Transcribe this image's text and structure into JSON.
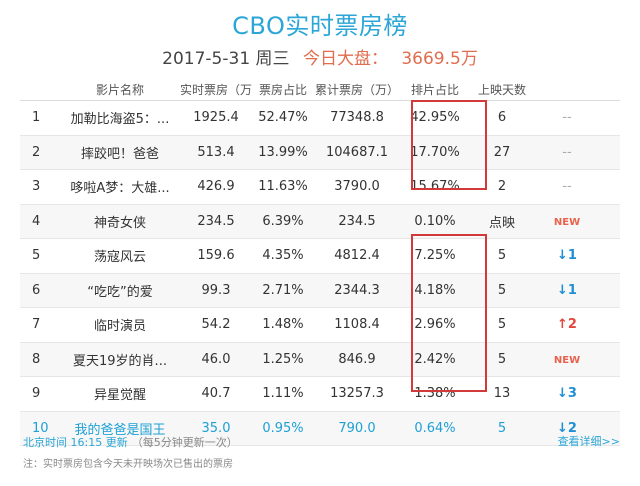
{
  "header": {
    "title": "CBO实时票房榜",
    "date": "2017-5-31 周三",
    "gross_label": "今日大盘：",
    "gross_value": "3669.5万"
  },
  "columns": [
    "影片名称",
    "实时票房（万）",
    "票房占比",
    "累计票房（万）",
    "排片占比",
    "上映天数"
  ],
  "rows": [
    {
      "rank": "1",
      "name": "加勒比海盗5：...",
      "realtime": "1925.4",
      "ratio": "52.47%",
      "total": "77348.8",
      "schedule": "42.95%",
      "days": "6",
      "trend": "--",
      "trend_type": "none"
    },
    {
      "rank": "2",
      "name": "摔跤吧！爸爸",
      "realtime": "513.4",
      "ratio": "13.99%",
      "total": "104687.1",
      "schedule": "17.70%",
      "days": "27",
      "trend": "--",
      "trend_type": "none"
    },
    {
      "rank": "3",
      "name": "哆啦A梦：大雄...",
      "realtime": "426.9",
      "ratio": "11.63%",
      "total": "3790.0",
      "schedule": "15.67%",
      "days": "2",
      "trend": "--",
      "trend_type": "none"
    },
    {
      "rank": "4",
      "name": "神奇女侠",
      "realtime": "234.5",
      "ratio": "6.39%",
      "total": "234.5",
      "schedule": "0.10%",
      "days": "点映",
      "trend": "NEW",
      "trend_type": "new"
    },
    {
      "rank": "5",
      "name": "荡寇风云",
      "realtime": "159.6",
      "ratio": "4.35%",
      "total": "4812.4",
      "schedule": "7.25%",
      "days": "5",
      "trend": "↓1",
      "trend_type": "down"
    },
    {
      "rank": "6",
      "name": "“吃吃”的爱",
      "realtime": "99.3",
      "ratio": "2.71%",
      "total": "2344.3",
      "schedule": "4.18%",
      "days": "5",
      "trend": "↓1",
      "trend_type": "down"
    },
    {
      "rank": "7",
      "name": "临时演员",
      "realtime": "54.2",
      "ratio": "1.48%",
      "total": "1108.4",
      "schedule": "2.96%",
      "days": "5",
      "trend": "↑2",
      "trend_type": "up"
    },
    {
      "rank": "8",
      "name": "夏天19岁的肖...",
      "realtime": "46.0",
      "ratio": "1.25%",
      "total": "846.9",
      "schedule": "2.42%",
      "days": "5",
      "trend": "NEW",
      "trend_type": "new"
    },
    {
      "rank": "9",
      "name": "异星觉醒",
      "realtime": "40.7",
      "ratio": "1.11%",
      "total": "13257.3",
      "schedule": "1.38%",
      "days": "13",
      "trend": "↓3",
      "trend_type": "down"
    },
    {
      "rank": "10",
      "name": "我的爸爸是国王",
      "realtime": "35.0",
      "ratio": "0.95%",
      "total": "790.0",
      "schedule": "0.64%",
      "days": "5",
      "trend": "↓2",
      "trend_type": "down"
    }
  ],
  "footer": {
    "update_time": "北京时间 16:15 更新",
    "update_note": "（每5分钟更新一次）",
    "note": "注：实时票房包含今天未开映场次已售出的票房",
    "more_link": "查看详细>>"
  },
  "colors": {
    "accent": "#2ba6d6",
    "gross": "#e06d4e",
    "highlight_box": "#d23a3a",
    "trend_down": "#1f8fd3",
    "trend_up": "#e2473d"
  }
}
